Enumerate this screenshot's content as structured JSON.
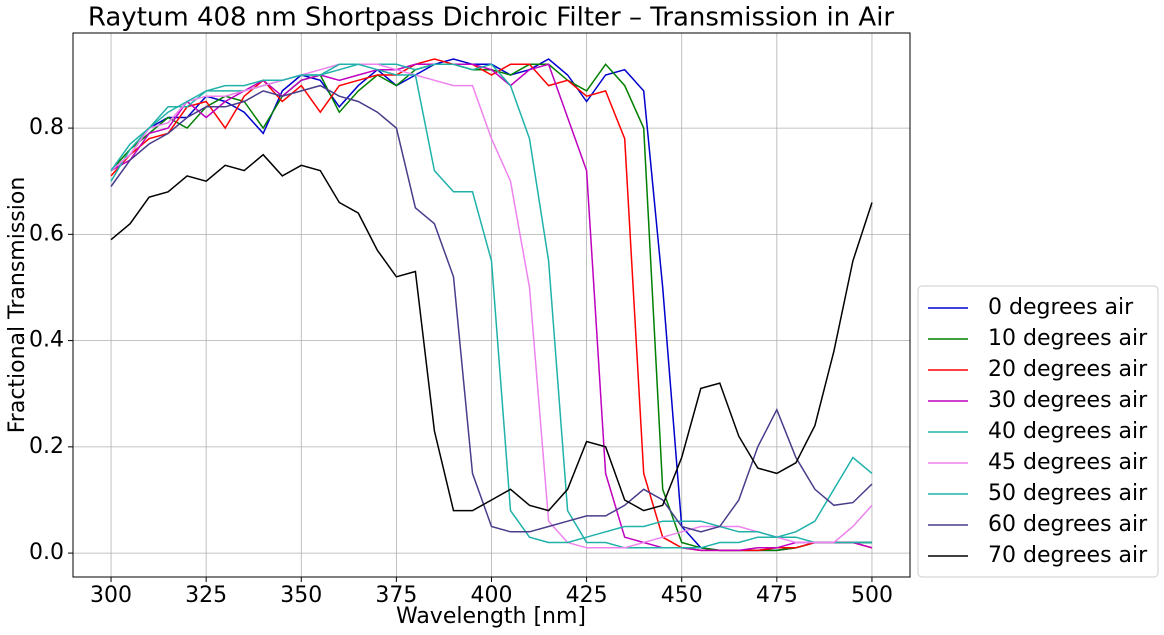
{
  "chart_data": {
    "type": "line",
    "title": "Raytum 408 nm Shortpass Dichroic Filter – Transmission in Air",
    "x_label": "Wavelength [nm]",
    "y_label": "Fractional Transmission",
    "x": [
      300,
      305,
      310,
      315,
      320,
      325,
      330,
      335,
      340,
      345,
      350,
      355,
      360,
      365,
      370,
      375,
      380,
      385,
      390,
      395,
      400,
      405,
      410,
      415,
      420,
      425,
      430,
      435,
      440,
      445,
      450,
      455,
      460,
      465,
      470,
      475,
      480,
      485,
      490,
      495,
      500
    ],
    "series": [
      {
        "name": "0 degrees air",
        "color": "#0000cd",
        "values": [
          0.72,
          0.75,
          0.8,
          0.82,
          0.82,
          0.86,
          0.85,
          0.83,
          0.79,
          0.87,
          0.9,
          0.89,
          0.84,
          0.88,
          0.91,
          0.88,
          0.9,
          0.92,
          0.93,
          0.92,
          0.92,
          0.9,
          0.91,
          0.93,
          0.9,
          0.85,
          0.9,
          0.91,
          0.87,
          0.5,
          0.05,
          0.01,
          0.005,
          0.005,
          0.005,
          0.005,
          0.01,
          0.02,
          0.02,
          0.02,
          0.02
        ]
      },
      {
        "name": "10 degrees air",
        "color": "#008000",
        "values": [
          0.72,
          0.76,
          0.79,
          0.82,
          0.8,
          0.84,
          0.86,
          0.85,
          0.8,
          0.86,
          0.89,
          0.9,
          0.83,
          0.87,
          0.9,
          0.88,
          0.91,
          0.92,
          0.92,
          0.91,
          0.91,
          0.9,
          0.92,
          0.92,
          0.89,
          0.87,
          0.92,
          0.88,
          0.8,
          0.12,
          0.02,
          0.01,
          0.005,
          0.005,
          0.005,
          0.005,
          0.01,
          0.02,
          0.02,
          0.02,
          0.02
        ]
      },
      {
        "name": "20 degrees air",
        "color": "#ff0000",
        "values": [
          0.71,
          0.75,
          0.78,
          0.79,
          0.84,
          0.85,
          0.8,
          0.86,
          0.89,
          0.85,
          0.88,
          0.83,
          0.88,
          0.89,
          0.9,
          0.9,
          0.92,
          0.93,
          0.92,
          0.92,
          0.9,
          0.92,
          0.92,
          0.88,
          0.89,
          0.86,
          0.87,
          0.78,
          0.15,
          0.03,
          0.01,
          0.005,
          0.005,
          0.005,
          0.005,
          0.01,
          0.01,
          0.02,
          0.02,
          0.02,
          0.01
        ]
      },
      {
        "name": "30 degrees air",
        "color": "#bf00bf",
        "values": [
          0.72,
          0.74,
          0.79,
          0.8,
          0.85,
          0.82,
          0.85,
          0.87,
          0.89,
          0.86,
          0.89,
          0.9,
          0.89,
          0.9,
          0.91,
          0.91,
          0.92,
          0.92,
          0.92,
          0.92,
          0.91,
          0.88,
          0.91,
          0.92,
          0.82,
          0.72,
          0.15,
          0.03,
          0.02,
          0.01,
          0.01,
          0.005,
          0.005,
          0.005,
          0.01,
          0.01,
          0.02,
          0.02,
          0.02,
          0.02,
          0.01
        ]
      },
      {
        "name": "40 degrees air",
        "color": "#20b2aa",
        "values": [
          0.7,
          0.76,
          0.8,
          0.84,
          0.84,
          0.87,
          0.87,
          0.87,
          0.88,
          0.89,
          0.9,
          0.9,
          0.91,
          0.92,
          0.92,
          0.92,
          0.91,
          0.92,
          0.92,
          0.91,
          0.92,
          0.88,
          0.78,
          0.55,
          0.08,
          0.02,
          0.02,
          0.01,
          0.01,
          0.01,
          0.01,
          0.01,
          0.02,
          0.02,
          0.03,
          0.03,
          0.03,
          0.02,
          0.02,
          0.02,
          0.02
        ]
      },
      {
        "name": "45 degrees air",
        "color": "#ee82ee",
        "values": [
          0.72,
          0.75,
          0.8,
          0.81,
          0.85,
          0.86,
          0.86,
          0.87,
          0.88,
          0.89,
          0.9,
          0.91,
          0.92,
          0.92,
          0.92,
          0.91,
          0.9,
          0.89,
          0.88,
          0.88,
          0.78,
          0.7,
          0.5,
          0.06,
          0.02,
          0.01,
          0.01,
          0.01,
          0.02,
          0.03,
          0.04,
          0.05,
          0.05,
          0.05,
          0.04,
          0.03,
          0.02,
          0.02,
          0.02,
          0.05,
          0.09
        ]
      },
      {
        "name": "50 degrees air",
        "color": "#20b2aa",
        "values": [
          0.72,
          0.77,
          0.8,
          0.83,
          0.85,
          0.87,
          0.88,
          0.88,
          0.89,
          0.89,
          0.9,
          0.9,
          0.92,
          0.92,
          0.91,
          0.9,
          0.9,
          0.72,
          0.68,
          0.68,
          0.55,
          0.08,
          0.03,
          0.02,
          0.02,
          0.03,
          0.04,
          0.05,
          0.05,
          0.06,
          0.06,
          0.06,
          0.05,
          0.04,
          0.04,
          0.03,
          0.04,
          0.06,
          0.12,
          0.18,
          0.15
        ]
      },
      {
        "name": "60 degrees air",
        "color": "#483d8b",
        "values": [
          0.69,
          0.74,
          0.77,
          0.79,
          0.82,
          0.84,
          0.84,
          0.85,
          0.87,
          0.86,
          0.87,
          0.88,
          0.86,
          0.85,
          0.83,
          0.8,
          0.65,
          0.62,
          0.52,
          0.15,
          0.05,
          0.04,
          0.04,
          0.05,
          0.06,
          0.07,
          0.07,
          0.09,
          0.12,
          0.1,
          0.05,
          0.04,
          0.05,
          0.1,
          0.2,
          0.27,
          0.18,
          0.12,
          0.09,
          0.095,
          0.13
        ]
      },
      {
        "name": "70 degrees air",
        "color": "#000000",
        "values": [
          0.59,
          0.62,
          0.67,
          0.68,
          0.71,
          0.7,
          0.73,
          0.72,
          0.75,
          0.71,
          0.73,
          0.72,
          0.66,
          0.64,
          0.57,
          0.52,
          0.53,
          0.23,
          0.08,
          0.08,
          0.1,
          0.12,
          0.09,
          0.08,
          0.12,
          0.21,
          0.2,
          0.1,
          0.08,
          0.09,
          0.18,
          0.31,
          0.32,
          0.22,
          0.16,
          0.15,
          0.17,
          0.24,
          0.38,
          0.55,
          0.66
        ]
      }
    ],
    "xlim": [
      290,
      510
    ],
    "ylim": [
      -0.045,
      0.979
    ],
    "xticks": [
      300,
      325,
      350,
      375,
      400,
      425,
      450,
      475,
      500
    ],
    "yticks": [
      {
        "value": 0,
        "label": "0.0"
      },
      0.2,
      0.4,
      0.6,
      0.8
    ],
    "grid": true,
    "legend": "outside-lower-right"
  }
}
